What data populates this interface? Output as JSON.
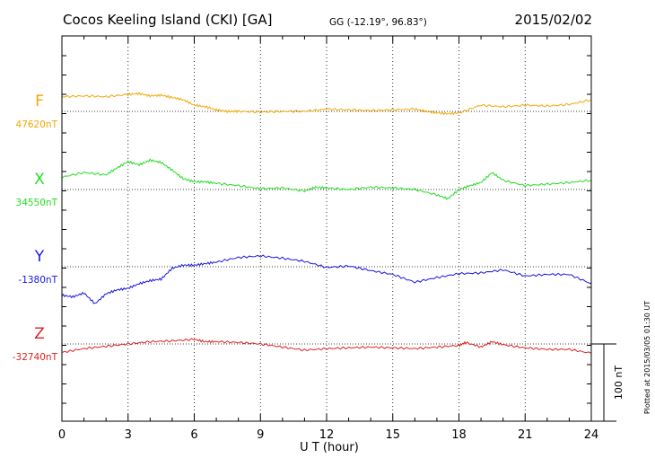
{
  "chart_data": {
    "type": "line",
    "title": "Cocos Keeling Island (CKI)  [GA]",
    "coords": "GG (-12.19°,  96.83°)",
    "date": "2015/02/02",
    "xlabel": "U T (hour)",
    "xlim": [
      0,
      24
    ],
    "xticks": [
      "0",
      "3",
      "6",
      "9",
      "12",
      "15",
      "18",
      "21",
      "24"
    ],
    "grid": true,
    "scale_bar": {
      "value": 100,
      "label": "100 nT"
    },
    "plotted_note": "Plotted at 2015/03/05 01:30 UT",
    "series": [
      {
        "name": "F",
        "baseline_label": "47620nT",
        "baseline": 47620,
        "color": "#f0a800",
        "x": [
          0,
          1,
          2,
          3,
          3.5,
          4,
          4.5,
          5,
          5.5,
          6,
          6.5,
          7,
          7.5,
          8,
          9,
          10,
          11,
          12,
          13,
          14,
          15,
          16,
          16.5,
          17,
          17.5,
          18,
          19,
          20,
          21,
          22,
          23,
          24
        ],
        "values": [
          47639,
          47640,
          47639,
          47642,
          47643,
          47640,
          47641,
          47638,
          47635,
          47628,
          47626,
          47622,
          47620,
          47620,
          47619,
          47620,
          47620,
          47623,
          47622,
          47621,
          47622,
          47623,
          47620,
          47618,
          47617,
          47618,
          47628,
          47626,
          47628,
          47627,
          47629,
          47635
        ]
      },
      {
        "name": "X",
        "baseline_label": "34550nT",
        "baseline": 34550,
        "color": "#22dd22",
        "x": [
          0,
          1,
          2,
          2.5,
          3,
          3.5,
          4,
          4.5,
          5,
          5.5,
          6,
          6.5,
          7,
          8,
          9,
          10,
          11,
          11.5,
          12,
          13,
          14,
          15,
          16,
          17,
          17.5,
          18,
          18.5,
          19,
          19.5,
          20,
          21,
          22,
          23,
          24
        ],
        "values": [
          34566,
          34572,
          34569,
          34578,
          34586,
          34582,
          34588,
          34585,
          34575,
          34564,
          34560,
          34560,
          34558,
          34555,
          34551,
          34552,
          34548,
          34553,
          34552,
          34550,
          34553,
          34552,
          34550,
          34543,
          34538,
          34550,
          34555,
          34559,
          34572,
          34562,
          34555,
          34557,
          34559,
          34562
        ]
      },
      {
        "name": "Y",
        "baseline_label": "-1380nT",
        "baseline": -1380,
        "color": "#1818dd",
        "x": [
          0,
          0.5,
          1,
          1.5,
          2,
          2.5,
          3,
          3.5,
          4,
          4.5,
          5,
          5.5,
          6,
          6.5,
          7,
          8,
          9,
          10,
          11,
          12,
          13,
          14,
          15,
          16,
          17,
          18,
          19,
          20,
          21,
          22,
          23,
          24
        ],
        "values": [
          -1417,
          -1419,
          -1414,
          -1428,
          -1415,
          -1410,
          -1408,
          -1402,
          -1398,
          -1396,
          -1382,
          -1378,
          -1378,
          -1376,
          -1374,
          -1368,
          -1366,
          -1369,
          -1373,
          -1381,
          -1379,
          -1385,
          -1390,
          -1400,
          -1394,
          -1389,
          -1388,
          -1384,
          -1392,
          -1390,
          -1390,
          -1402
        ]
      },
      {
        "name": "Z",
        "baseline_label": "-32740nT",
        "baseline": -32740,
        "color": "#dd2222",
        "x": [
          0,
          1,
          2,
          3,
          4,
          5,
          6,
          6.5,
          7,
          8,
          9,
          10,
          11,
          12,
          13,
          14,
          15,
          16,
          17,
          18,
          18.3,
          19,
          19.5,
          20,
          21,
          22,
          23,
          24
        ],
        "values": [
          -32751,
          -32746,
          -32743,
          -32740,
          -32737,
          -32736,
          -32734,
          -32737,
          -32737,
          -32738,
          -32740,
          -32744,
          -32748,
          -32746,
          -32745,
          -32744,
          -32745,
          -32746,
          -32744,
          -32742,
          -32738,
          -32744,
          -32737,
          -32741,
          -32745,
          -32747,
          -32747,
          -32752
        ]
      }
    ]
  }
}
